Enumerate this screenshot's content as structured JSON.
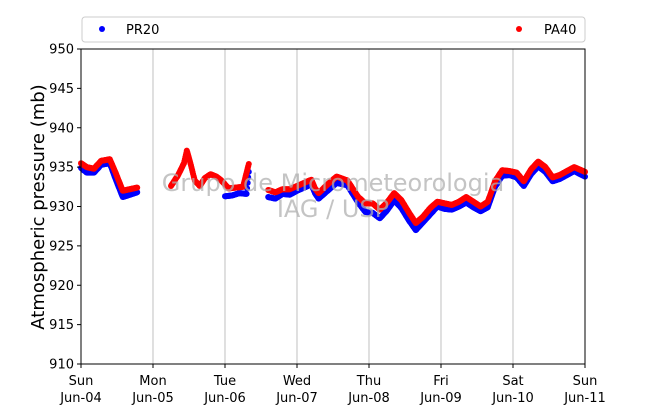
{
  "chart_data": {
    "type": "scatter",
    "ylabel": "Atmospheric pressure (mb)",
    "ylim": [
      910,
      950
    ],
    "xlim": [
      0,
      7
    ],
    "y_ticks": [
      910,
      915,
      920,
      925,
      930,
      935,
      940,
      945,
      950
    ],
    "x_ticks": [
      {
        "x": 0,
        "day": "Sun",
        "date": "Jun-04"
      },
      {
        "x": 1,
        "day": "Mon",
        "date": "Jun-05"
      },
      {
        "x": 2,
        "day": "Tue",
        "date": "Jun-06"
      },
      {
        "x": 3,
        "day": "Wed",
        "date": "Jun-07"
      },
      {
        "x": 4,
        "day": "Thu",
        "date": "Jun-08"
      },
      {
        "x": 5,
        "day": "Fri",
        "date": "Jun-09"
      },
      {
        "x": 6,
        "day": "Sat",
        "date": "Jun-10"
      },
      {
        "x": 7,
        "day": "Sun",
        "date": "Jun-11"
      }
    ],
    "grid": "vertical",
    "legend_placement": "top",
    "watermark_lines": [
      "Grupo de Micrometeorologia",
      "IAG / USP"
    ],
    "x_units": "days since Sun Jun-04 00:00",
    "series": [
      {
        "name": "PR20",
        "color": "#0000ff",
        "segments": [
          [
            [
              0.0,
              934.9
            ],
            [
              0.08,
              934.3
            ],
            [
              0.18,
              934.3
            ],
            [
              0.28,
              935.3
            ],
            [
              0.4,
              935.5
            ],
            [
              0.48,
              933.5
            ],
            [
              0.58,
              931.2
            ],
            [
              0.68,
              931.5
            ],
            [
              0.78,
              931.8
            ]
          ],
          [
            [
              2.0,
              931.3
            ],
            [
              2.1,
              931.4
            ],
            [
              2.2,
              931.7
            ],
            [
              2.3,
              931.6
            ],
            [
              2.33,
              934.4
            ]
          ],
          [
            [
              2.6,
              931.2
            ],
            [
              2.7,
              931.0
            ],
            [
              2.8,
              931.6
            ],
            [
              2.9,
              931.5
            ],
            [
              3.0,
              932.0
            ],
            [
              3.1,
              932.4
            ],
            [
              3.2,
              932.8
            ],
            [
              3.25,
              931.7
            ],
            [
              3.3,
              931.0
            ],
            [
              3.4,
              931.8
            ],
            [
              3.55,
              933.0
            ],
            [
              3.7,
              932.7
            ],
            [
              3.85,
              930.5
            ],
            [
              3.95,
              929.3
            ],
            [
              4.05,
              929.2
            ],
            [
              4.15,
              928.5
            ],
            [
              4.25,
              929.5
            ],
            [
              4.35,
              930.8
            ],
            [
              4.45,
              929.8
            ],
            [
              4.55,
              928.3
            ],
            [
              4.65,
              927.0
            ],
            [
              4.75,
              928.0
            ],
            [
              4.85,
              929.0
            ],
            [
              4.95,
              930.0
            ],
            [
              5.05,
              929.7
            ],
            [
              5.15,
              929.6
            ],
            [
              5.25,
              930.0
            ],
            [
              5.35,
              930.5
            ],
            [
              5.45,
              929.9
            ],
            [
              5.55,
              929.4
            ],
            [
              5.65,
              929.9
            ],
            [
              5.75,
              932.5
            ],
            [
              5.85,
              933.9
            ],
            [
              5.95,
              934.0
            ],
            [
              6.05,
              933.7
            ],
            [
              6.15,
              932.6
            ],
            [
              6.25,
              934.1
            ],
            [
              6.35,
              935.1
            ],
            [
              6.45,
              934.4
            ],
            [
              6.55,
              933.2
            ],
            [
              6.65,
              933.5
            ],
            [
              6.75,
              934.0
            ],
            [
              6.85,
              934.5
            ],
            [
              7.0,
              933.8
            ]
          ]
        ]
      },
      {
        "name": "PA40",
        "color": "#ff0000",
        "segments": [
          [
            [
              0.0,
              935.5
            ],
            [
              0.08,
              935.0
            ],
            [
              0.18,
              934.8
            ],
            [
              0.28,
              935.8
            ],
            [
              0.4,
              936.0
            ],
            [
              0.48,
              934.3
            ],
            [
              0.58,
              932.0
            ],
            [
              0.68,
              932.2
            ],
            [
              0.78,
              932.4
            ]
          ],
          [
            [
              1.25,
              932.6
            ],
            [
              1.35,
              934.0
            ],
            [
              1.43,
              935.5
            ],
            [
              1.47,
              937.1
            ],
            [
              1.52,
              935.5
            ],
            [
              1.58,
              933.3
            ],
            [
              1.65,
              932.6
            ],
            [
              1.72,
              933.6
            ],
            [
              1.8,
              934.1
            ],
            [
              1.88,
              933.8
            ],
            [
              1.95,
              933.3
            ],
            [
              2.05,
              932.3
            ],
            [
              2.15,
              932.4
            ],
            [
              2.25,
              932.5
            ],
            [
              2.33,
              935.4
            ]
          ],
          [
            [
              2.6,
              932.1
            ],
            [
              2.7,
              931.8
            ],
            [
              2.8,
              932.2
            ],
            [
              2.9,
              932.2
            ],
            [
              3.0,
              932.6
            ],
            [
              3.1,
              933.0
            ],
            [
              3.2,
              933.4
            ],
            [
              3.25,
              932.3
            ],
            [
              3.3,
              931.7
            ],
            [
              3.4,
              932.6
            ],
            [
              3.55,
              933.8
            ],
            [
              3.7,
              933.3
            ],
            [
              3.85,
              931.2
            ],
            [
              3.95,
              930.4
            ],
            [
              4.05,
              930.4
            ],
            [
              4.15,
              929.6
            ],
            [
              4.25,
              930.5
            ],
            [
              4.35,
              931.7
            ],
            [
              4.45,
              930.8
            ],
            [
              4.55,
              929.3
            ],
            [
              4.65,
              927.9
            ],
            [
              4.75,
              928.7
            ],
            [
              4.85,
              929.8
            ],
            [
              4.95,
              930.6
            ],
            [
              5.05,
              930.4
            ],
            [
              5.15,
              930.2
            ],
            [
              5.25,
              930.6
            ],
            [
              5.35,
              931.2
            ],
            [
              5.45,
              930.6
            ],
            [
              5.55,
              930.0
            ],
            [
              5.65,
              930.6
            ],
            [
              5.75,
              933.2
            ],
            [
              5.85,
              934.6
            ],
            [
              5.95,
              934.5
            ],
            [
              6.05,
              934.3
            ],
            [
              6.15,
              933.2
            ],
            [
              6.25,
              934.7
            ],
            [
              6.35,
              935.7
            ],
            [
              6.45,
              935.0
            ],
            [
              6.55,
              933.7
            ],
            [
              6.65,
              934.0
            ],
            [
              6.75,
              934.5
            ],
            [
              6.85,
              935.0
            ],
            [
              7.0,
              934.4
            ]
          ]
        ]
      }
    ]
  }
}
